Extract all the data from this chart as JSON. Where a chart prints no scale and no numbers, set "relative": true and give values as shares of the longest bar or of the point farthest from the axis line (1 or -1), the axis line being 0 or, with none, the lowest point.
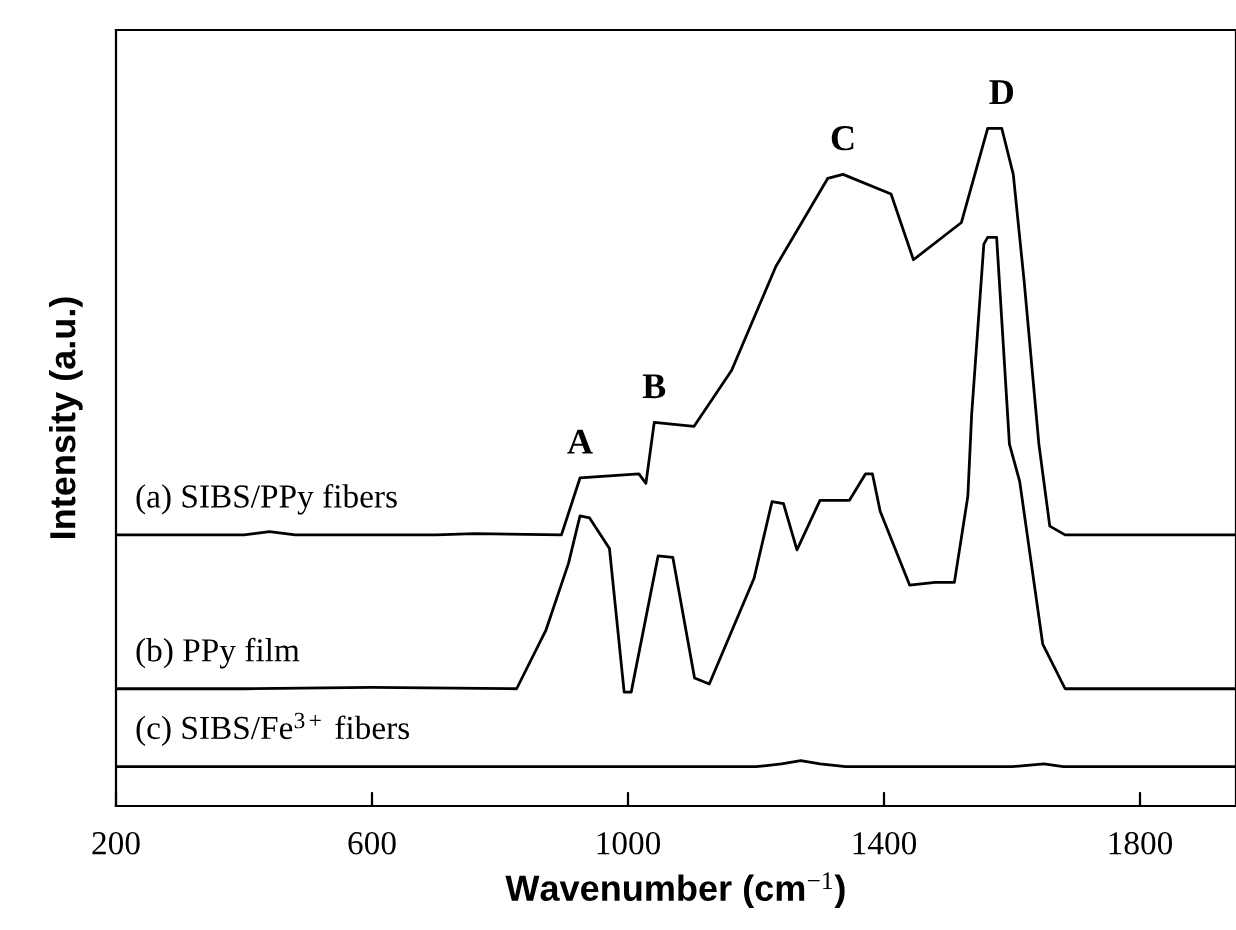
{
  "chart_data": {
    "type": "line",
    "relative": true,
    "xlabel": "Wavenumber (cm$^{−1}$)",
    "ylabel": "Intensity (a.u.)",
    "xlim": [
      200,
      1950
    ],
    "xticks": [
      200,
      600,
      1000,
      1400,
      1800
    ],
    "tick_labels": "x",
    "grid": false,
    "legend": false,
    "marker": "none",
    "line_style": "solid",
    "series": [
      {
        "name": "(a) SIBS/PPy fibers",
        "color": "#000000",
        "x": [
          200,
          400,
          440,
          480,
          700,
          760,
          896,
          925,
          1017,
          1028,
          1041,
          1103,
          1162,
          1231,
          1312,
          1336,
          1411,
          1446,
          1521,
          1562,
          1584,
          1602,
          1619,
          1642,
          1659,
          1683,
          1800,
          1950
        ],
        "values": [
          0.4,
          0.4,
          0.405,
          0.4,
          0.4,
          0.402,
          0.4,
          0.484,
          0.49,
          0.476,
          0.566,
          0.56,
          0.643,
          0.796,
          0.926,
          0.932,
          0.903,
          0.806,
          0.861,
          1.0,
          1.0,
          0.932,
          0.774,
          0.534,
          0.413,
          0.4,
          0.4,
          0.4
        ]
      },
      {
        "name": "(b) PPy film",
        "color": "#000000",
        "x": [
          200,
          400,
          600,
          826,
          872,
          907,
          925,
          940,
          971,
          994,
          1005,
          1047,
          1070,
          1104,
          1127,
          1197,
          1225,
          1243,
          1264,
          1300,
          1346,
          1371,
          1382,
          1394,
          1440,
          1480,
          1510,
          1531,
          1537,
          1556,
          1562,
          1576,
          1596,
          1612,
          1648,
          1683,
          1800,
          1950
        ],
        "values": [
          0.173,
          0.173,
          0.175,
          0.173,
          0.26,
          0.358,
          0.428,
          0.425,
          0.38,
          0.168,
          0.168,
          0.369,
          0.367,
          0.189,
          0.18,
          0.336,
          0.449,
          0.446,
          0.378,
          0.451,
          0.451,
          0.49,
          0.49,
          0.435,
          0.326,
          0.33,
          0.33,
          0.457,
          0.578,
          0.829,
          0.839,
          0.839,
          0.534,
          0.479,
          0.239,
          0.173,
          0.173,
          0.173
        ]
      },
      {
        "name": "(c) SIBS/Fe$^{3+}$ fibers",
        "color": "#000000",
        "x": [
          200,
          600,
          1000,
          1200,
          1240,
          1270,
          1300,
          1340,
          1400,
          1600,
          1650,
          1680,
          1800,
          1950
        ],
        "values": [
          0.058,
          0.058,
          0.058,
          0.058,
          0.062,
          0.067,
          0.062,
          0.058,
          0.058,
          0.058,
          0.062,
          0.058,
          0.058,
          0.058
        ]
      }
    ],
    "annotations": [
      {
        "text": "A",
        "x": 925,
        "y": 0.484
      },
      {
        "text": "B",
        "x": 1041,
        "y": 0.566
      },
      {
        "text": "C",
        "x": 1336,
        "y": 0.932
      },
      {
        "text": "D",
        "x": 1584,
        "y": 1.0
      }
    ]
  }
}
